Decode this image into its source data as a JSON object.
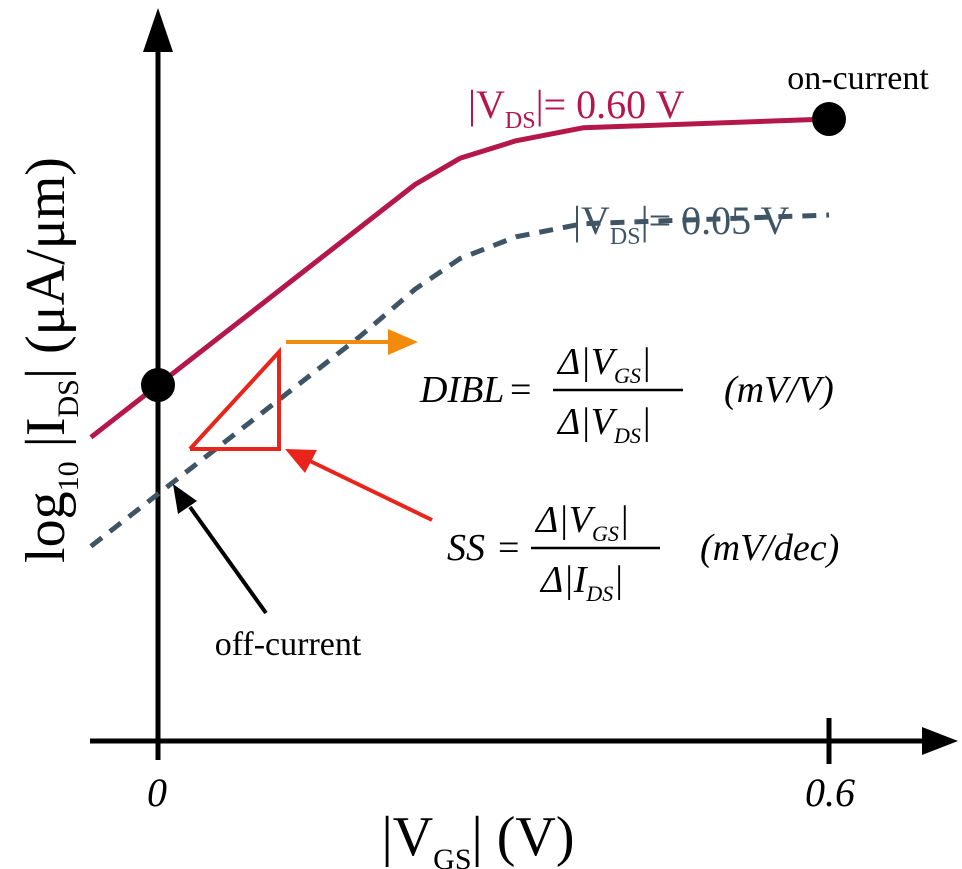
{
  "chart_data": {
    "type": "line",
    "title": "",
    "xlabel": {
      "main": "|V",
      "sub": "GS",
      "rest": "| (V)"
    },
    "ylabel": {
      "pre": "log",
      "sub1": "10",
      "mid": " |I",
      "sub2": "DS",
      "rest": "| (μA/μm)"
    },
    "x_ticks": [
      "0",
      "0.6"
    ],
    "series": [
      {
        "name": "|VDS|= 0.60 V",
        "label": {
          "main": "|V",
          "sub": "DS",
          "rest": "|= 0.60 V"
        },
        "color": "#b5174b",
        "style": "solid",
        "points": [
          [
            -0.06,
            0.38
          ],
          [
            0.0,
            0.5
          ],
          [
            0.06,
            0.62
          ],
          [
            0.12,
            0.74
          ],
          [
            0.18,
            0.86
          ],
          [
            0.23,
            0.96
          ],
          [
            0.27,
            1.02
          ],
          [
            0.32,
            1.06
          ],
          [
            0.38,
            1.09
          ],
          [
            0.6,
            1.11
          ]
        ]
      },
      {
        "name": "|VDS|= 0.05 V",
        "label": {
          "main": "|V",
          "sub": "DS",
          "rest": "|= 0.05 V"
        },
        "color": "#3f5566",
        "style": "dashed",
        "points": [
          [
            -0.06,
            0.13
          ],
          [
            0.0,
            0.25
          ],
          [
            0.06,
            0.37
          ],
          [
            0.12,
            0.49
          ],
          [
            0.18,
            0.61
          ],
          [
            0.23,
            0.72
          ],
          [
            0.27,
            0.79
          ],
          [
            0.32,
            0.84
          ],
          [
            0.38,
            0.87
          ],
          [
            0.6,
            0.89
          ]
        ]
      }
    ],
    "points_of_interest": [
      {
        "label": "on-current",
        "x": 0.6,
        "y": 1.11
      },
      {
        "label": "off-current",
        "x": 0.0,
        "y": 0.5
      }
    ],
    "annotations": {
      "dibl": {
        "lhs": "DIBL",
        "eq": "=",
        "num": {
          "delta": "Δ|V",
          "sub": "GS",
          "close": "|"
        },
        "den": {
          "delta": "Δ|V",
          "sub": "DS",
          "close": "|"
        },
        "unit": "(mV/V)",
        "arrow_color": "#f28a0c"
      },
      "ss": {
        "lhs": "SS",
        "eq": "=",
        "num": {
          "delta": "Δ|V",
          "sub": "GS",
          "close": "|"
        },
        "den": {
          "delta": "Δ|I",
          "sub": "DS",
          "close": "|"
        },
        "unit": "(mV/dec)",
        "triangle_color": "#e8241b"
      }
    }
  }
}
